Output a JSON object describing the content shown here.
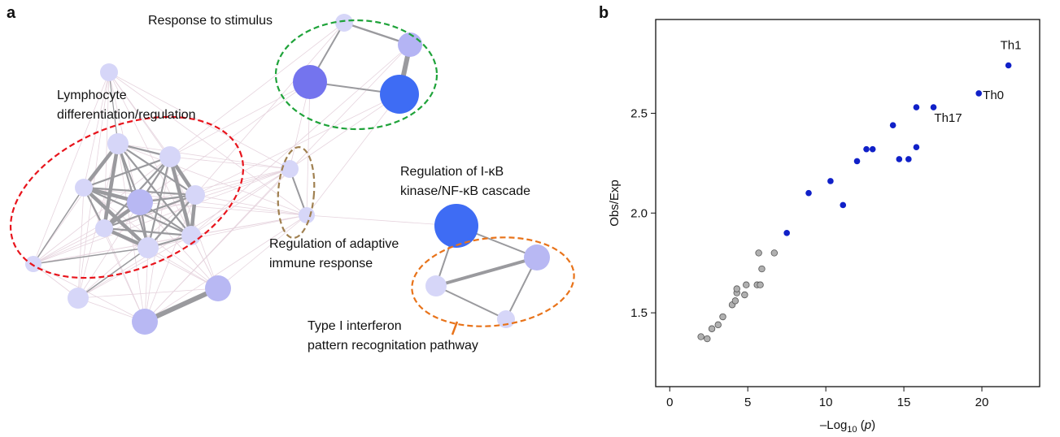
{
  "network": {
    "panel_label": "a",
    "clusters": [
      {
        "lines": [
          "Response to stimulus"
        ],
        "color": "#1fa33a"
      },
      {
        "lines": [
          "Lymphocyte",
          "differentiation/regulation"
        ],
        "color": "#e8141c"
      },
      {
        "lines": [
          "Regulation of I-κB",
          "kinase/NF-κB cascade"
        ],
        "color": "#111111"
      },
      {
        "lines": [
          "Regulation of adaptive",
          "immune response"
        ],
        "color": "#a08050"
      },
      {
        "lines": [
          "Type I interferon",
          "pattern recognitation pathway"
        ],
        "color": "#e8731a"
      }
    ]
  },
  "chart_data": {
    "type": "scatter",
    "panel_label": "b",
    "xlabel": {
      "main": "–Log",
      "sub": "10",
      "open": " (",
      "var": "p",
      "close": ")"
    },
    "ylabel": "Obs/Exp",
    "xlim": [
      -0.9,
      23.7
    ],
    "ylim": [
      1.13,
      2.97
    ],
    "xticks": [
      0,
      5,
      10,
      15,
      20
    ],
    "yticks": [
      1.5,
      {
        "value": 2,
        "label": "2.0"
      },
      2.5
    ],
    "series": [
      {
        "color": "#b0b0b0",
        "x": [
          2.0,
          2.4,
          2.7,
          3.1,
          3.4,
          4.0,
          4.2,
          4.3,
          4.3,
          4.8,
          4.9,
          5.6,
          5.8,
          5.9,
          5.7,
          6.7
        ],
        "values": [
          1.38,
          1.37,
          1.42,
          1.44,
          1.48,
          1.54,
          1.56,
          1.6,
          1.62,
          1.59,
          1.64,
          1.64,
          1.64,
          1.72,
          1.8,
          1.8
        ]
      },
      {
        "color": "#1020c8",
        "x": [
          21.7,
          19.8,
          16.9,
          15.8,
          14.3,
          15.8,
          14.7,
          15.3,
          12.0,
          12.6,
          13.0,
          10.3,
          8.9,
          11.1,
          7.5
        ],
        "values": [
          2.74,
          2.6,
          2.53,
          2.53,
          2.44,
          2.33,
          2.27,
          2.27,
          2.26,
          2.32,
          2.32,
          2.16,
          2.1,
          2.04,
          1.9
        ],
        "labels": [
          "Th1",
          "Th0",
          null,
          "Th17",
          null,
          null,
          null,
          null,
          null,
          null,
          null,
          null,
          null,
          null,
          null
        ]
      }
    ]
  }
}
